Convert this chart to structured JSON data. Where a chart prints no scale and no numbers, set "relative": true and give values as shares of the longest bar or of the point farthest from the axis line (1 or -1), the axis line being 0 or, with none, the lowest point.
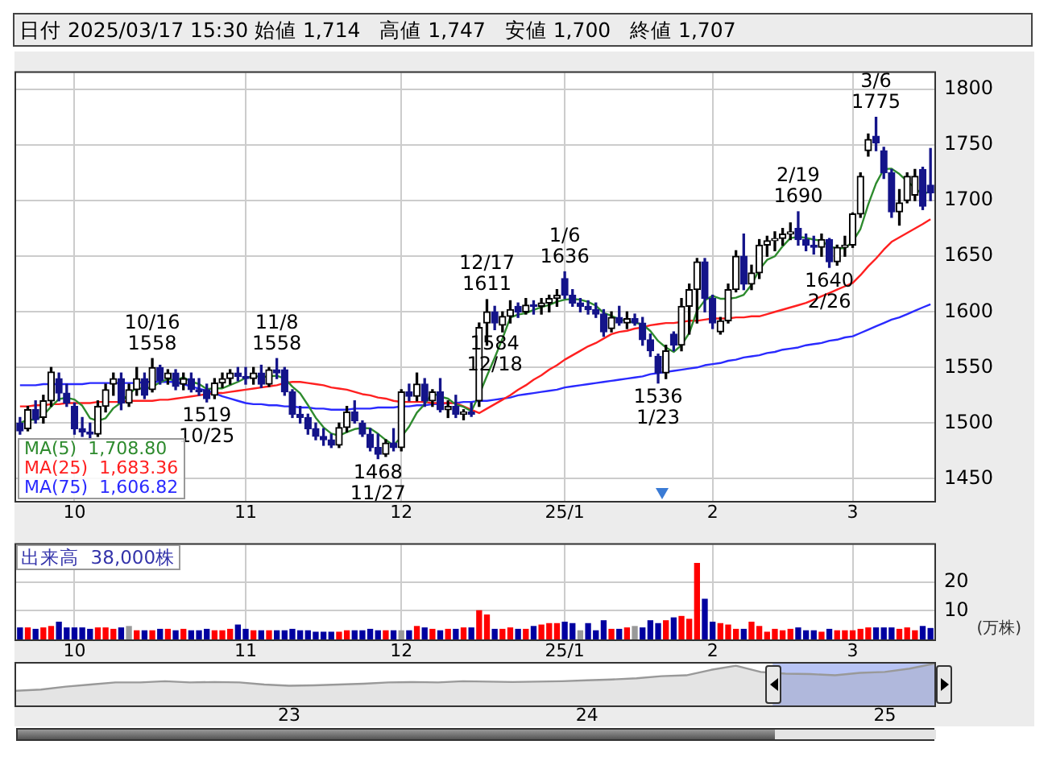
{
  "chart_data": [
    {
      "type": "candlestick",
      "title": "日付 2025/03/17 15:30 始値 1,714   高値 1,747   安値 1,700   終値 1,707",
      "categories": [
        null,
        null,
        null,
        null,
        null,
        null,
        null,
        "10",
        null,
        null,
        null,
        null,
        null,
        null,
        null,
        null,
        null,
        null,
        null,
        null,
        null,
        null,
        null,
        null,
        null,
        null,
        null,
        null,
        null,
        "11",
        null,
        null,
        null,
        null,
        null,
        null,
        null,
        null,
        null,
        null,
        null,
        null,
        null,
        null,
        null,
        null,
        null,
        null,
        null,
        "12",
        null,
        null,
        null,
        null,
        null,
        null,
        null,
        null,
        null,
        null,
        null,
        null,
        null,
        null,
        null,
        null,
        null,
        null,
        null,
        null,
        "25/1",
        null,
        null,
        null,
        null,
        null,
        null,
        null,
        null,
        null,
        null,
        null,
        null,
        null,
        null,
        null,
        null,
        null,
        null,
        "2",
        null,
        null,
        null,
        null,
        null,
        null,
        null,
        null,
        null,
        null,
        null,
        null,
        null,
        null,
        null,
        null,
        null,
        "3",
        null,
        null,
        null,
        null,
        null,
        null,
        null,
        null,
        null,
        null
      ],
      "ohlc": [
        [
          1500,
          1505,
          1490,
          1493
        ],
        [
          1495,
          1515,
          1493,
          1512
        ],
        [
          1512,
          1520,
          1500,
          1503
        ],
        [
          1505,
          1525,
          1500,
          1520
        ],
        [
          1520,
          1550,
          1515,
          1546
        ],
        [
          1540,
          1545,
          1520,
          1527
        ],
        [
          1527,
          1535,
          1515,
          1518
        ],
        [
          1515,
          1518,
          1490,
          1495
        ],
        [
          1495,
          1505,
          1488,
          1492
        ],
        [
          1492,
          1500,
          1485,
          1490
        ],
        [
          1490,
          1520,
          1488,
          1515
        ],
        [
          1515,
          1535,
          1510,
          1530
        ],
        [
          1535,
          1545,
          1525,
          1540
        ],
        [
          1540,
          1545,
          1512,
          1518
        ],
        [
          1518,
          1535,
          1515,
          1530
        ],
        [
          1530,
          1550,
          1525,
          1540
        ],
        [
          1540,
          1545,
          1522,
          1525
        ],
        [
          1530,
          1558,
          1528,
          1550
        ],
        [
          1550,
          1552,
          1535,
          1538
        ],
        [
          1540,
          1548,
          1535,
          1545
        ],
        [
          1545,
          1548,
          1530,
          1533
        ],
        [
          1535,
          1545,
          1530,
          1540
        ],
        [
          1540,
          1545,
          1528,
          1530
        ],
        [
          1530,
          1540,
          1525,
          1528
        ],
        [
          1530,
          1535,
          1519,
          1522
        ],
        [
          1525,
          1540,
          1522,
          1536
        ],
        [
          1536,
          1545,
          1532,
          1540
        ],
        [
          1540,
          1548,
          1535,
          1545
        ],
        [
          1545,
          1550,
          1538,
          1542
        ],
        [
          1542,
          1550,
          1535,
          1540
        ],
        [
          1540,
          1550,
          1535,
          1545
        ],
        [
          1545,
          1552,
          1532,
          1535
        ],
        [
          1535,
          1550,
          1533,
          1548
        ],
        [
          1548,
          1558,
          1540,
          1545
        ],
        [
          1548,
          1550,
          1525,
          1528
        ],
        [
          1528,
          1530,
          1505,
          1508
        ],
        [
          1508,
          1515,
          1500,
          1505
        ],
        [
          1505,
          1508,
          1490,
          1495
        ],
        [
          1495,
          1500,
          1485,
          1488
        ],
        [
          1488,
          1495,
          1480,
          1485
        ],
        [
          1485,
          1490,
          1478,
          1480
        ],
        [
          1480,
          1500,
          1478,
          1496
        ],
        [
          1496,
          1515,
          1492,
          1510
        ],
        [
          1510,
          1520,
          1500,
          1502
        ],
        [
          1500,
          1502,
          1488,
          1490
        ],
        [
          1490,
          1495,
          1475,
          1478
        ],
        [
          1478,
          1490,
          1468,
          1472
        ],
        [
          1472,
          1485,
          1470,
          1482
        ],
        [
          1482,
          1495,
          1475,
          1478
        ],
        [
          1478,
          1530,
          1475,
          1528
        ],
        [
          1528,
          1535,
          1520,
          1524
        ],
        [
          1524,
          1545,
          1520,
          1535
        ],
        [
          1535,
          1540,
          1515,
          1520
        ],
        [
          1520,
          1530,
          1515,
          1528
        ],
        [
          1528,
          1540,
          1510,
          1512
        ],
        [
          1512,
          1520,
          1505,
          1515
        ],
        [
          1515,
          1525,
          1505,
          1508
        ],
        [
          1508,
          1512,
          1503,
          1510
        ],
        [
          1510,
          1518,
          1506,
          1508
        ],
        [
          1520,
          1590,
          1515,
          1586
        ],
        [
          1590,
          1611,
          1570,
          1600
        ],
        [
          1600,
          1605,
          1584,
          1590
        ],
        [
          1588,
          1600,
          1582,
          1596
        ],
        [
          1596,
          1610,
          1590,
          1602
        ],
        [
          1605,
          1608,
          1595,
          1600
        ],
        [
          1600,
          1612,
          1598,
          1606
        ],
        [
          1606,
          1610,
          1598,
          1605
        ],
        [
          1605,
          1612,
          1598,
          1608
        ],
        [
          1608,
          1615,
          1600,
          1612
        ],
        [
          1612,
          1620,
          1605,
          1615
        ],
        [
          1630,
          1636,
          1612,
          1615
        ],
        [
          1615,
          1620,
          1605,
          1608
        ],
        [
          1608,
          1612,
          1600,
          1605
        ],
        [
          1605,
          1610,
          1598,
          1602
        ],
        [
          1602,
          1608,
          1595,
          1598
        ],
        [
          1598,
          1602,
          1578,
          1582
        ],
        [
          1585,
          1600,
          1582,
          1595
        ],
        [
          1595,
          1605,
          1588,
          1590
        ],
        [
          1590,
          1600,
          1585,
          1594
        ],
        [
          1594,
          1598,
          1588,
          1590
        ],
        [
          1590,
          1595,
          1570,
          1575
        ],
        [
          1575,
          1580,
          1560,
          1565
        ],
        [
          1560,
          1562,
          1536,
          1545
        ],
        [
          1545,
          1570,
          1540,
          1565
        ],
        [
          1580,
          1582,
          1565,
          1570
        ],
        [
          1570,
          1612,
          1565,
          1605
        ],
        [
          1605,
          1625,
          1580,
          1620
        ],
        [
          1620,
          1648,
          1590,
          1645
        ],
        [
          1645,
          1648,
          1600,
          1612
        ],
        [
          1612,
          1615,
          1585,
          1590
        ],
        [
          1582,
          1595,
          1580,
          1592
        ],
        [
          1592,
          1625,
          1590,
          1620
        ],
        [
          1620,
          1655,
          1618,
          1650
        ],
        [
          1650,
          1670,
          1620,
          1625
        ],
        [
          1625,
          1642,
          1620,
          1635
        ],
        [
          1635,
          1665,
          1630,
          1660
        ],
        [
          1660,
          1668,
          1650,
          1664
        ],
        [
          1664,
          1672,
          1655,
          1666
        ],
        [
          1666,
          1675,
          1660,
          1670
        ],
        [
          1670,
          1680,
          1665,
          1672
        ],
        [
          1675,
          1690,
          1660,
          1665
        ],
        [
          1665,
          1670,
          1655,
          1660
        ],
        [
          1660,
          1668,
          1652,
          1658
        ],
        [
          1658,
          1670,
          1650,
          1665
        ],
        [
          1665,
          1666,
          1640,
          1645
        ],
        [
          1645,
          1660,
          1642,
          1658
        ],
        [
          1658,
          1668,
          1650,
          1660
        ],
        [
          1660,
          1689,
          1658,
          1688
        ],
        [
          1688,
          1725,
          1685,
          1722
        ],
        [
          1745,
          1760,
          1740,
          1755
        ],
        [
          1758,
          1775,
          1745,
          1752
        ],
        [
          1745,
          1748,
          1720,
          1725
        ],
        [
          1725,
          1728,
          1685,
          1690
        ],
        [
          1690,
          1710,
          1678,
          1698
        ],
        [
          1700,
          1725,
          1698,
          1722
        ],
        [
          1705,
          1728,
          1700,
          1722
        ],
        [
          1728,
          1730,
          1692,
          1695
        ],
        [
          1714,
          1747,
          1700,
          1707
        ]
      ],
      "series": [
        {
          "type": "line",
          "name": "MA(5)  1,708.80",
          "color": "#2e8b2e",
          "values": [
            1500,
            1503,
            1503,
            1507,
            1514.8,
            1521.6,
            1522.8,
            1521.2,
            1515.6,
            1504.4,
            1502,
            1504.4,
            1513.4,
            1518.6,
            1526.6,
            1531.6,
            1530.6,
            1532.6,
            1536.6,
            1539.6,
            1538.2,
            1541.2,
            1537.2,
            1535.2,
            1530.6,
            1531.2,
            1531.2,
            1534.2,
            1537,
            1540.6,
            1542.4,
            1541.4,
            1542,
            1542.6,
            1540.2,
            1532.8,
            1526.8,
            1516.2,
            1504.8,
            1496.2,
            1490.6,
            1488.8,
            1491.8,
            1494.6,
            1495.6,
            1495.2,
            1490.4,
            1484.8,
            1480,
            1487.6,
            1496.8,
            1509.4,
            1517,
            1527,
            1523.8,
            1522,
            1516.6,
            1514.6,
            1510.6,
            1525.4,
            1542.4,
            1558.8,
            1576,
            1594.8,
            1597.6,
            1598.8,
            1601.8,
            1604.2,
            1606.2,
            1609.2,
            1611,
            1611.6,
            1611,
            1609,
            1605.6,
            1599,
            1596.4,
            1593.4,
            1591.8,
            1590.2,
            1588.8,
            1582.8,
            1573.8,
            1568,
            1564,
            1570,
            1581,
            1601,
            1610.4,
            1614.4,
            1611.8,
            1611.8,
            1612.8,
            1615.4,
            1624.4,
            1638,
            1646.8,
            1650,
            1659,
            1666.4,
            1667.4,
            1666.6,
            1665,
            1664,
            1658.6,
            1657.2,
            1657.2,
            1663.2,
            1674.6,
            1696.6,
            1715.4,
            1728.4,
            1728.8,
            1724,
            1717.4,
            1711.4,
            1705.4,
            1708.8
          ]
        },
        {
          "type": "line",
          "name": "MA(25)  1,683.36",
          "color": "#ff2020",
          "values": [
            1515,
            1515,
            1516,
            1516,
            1517,
            1517,
            1518,
            1518,
            1518,
            1518,
            1519,
            1519,
            1519,
            1519,
            1520,
            1520,
            1520,
            1520,
            1521,
            1521,
            1522,
            1523,
            1524,
            1525,
            1526,
            1527,
            1527,
            1528,
            1529,
            1530,
            1531,
            1532,
            1533,
            1534,
            1536,
            1537,
            1537,
            1536,
            1535,
            1534,
            1532,
            1531,
            1530,
            1528,
            1526,
            1525,
            1523,
            1522,
            1520,
            1519,
            1519,
            1519,
            1519,
            1518,
            1518,
            1518,
            1518,
            1515,
            1512,
            1509,
            1513,
            1517,
            1521,
            1525,
            1530,
            1534,
            1539,
            1543,
            1548,
            1552,
            1557,
            1561,
            1565,
            1569,
            1572,
            1576,
            1580,
            1582,
            1583,
            1585,
            1586,
            1588,
            1589,
            1590,
            1590,
            1591,
            1592,
            1592,
            1593,
            1594,
            1594,
            1594,
            1595,
            1595,
            1596,
            1596,
            1598,
            1600,
            1602,
            1604,
            1606,
            1608,
            1611,
            1614,
            1617,
            1620,
            1623,
            1626,
            1633,
            1641,
            1648,
            1656,
            1663,
            1667,
            1671,
            1675,
            1679,
            1683.36
          ]
        },
        {
          "type": "line",
          "name": "MA(75)  1,606.82",
          "color": "#2a2aff",
          "values": [
            1534,
            1534,
            1534,
            1535,
            1535,
            1535,
            1535,
            1535,
            1535,
            1536,
            1536,
            1536,
            1536,
            1536,
            1536,
            1536,
            1537,
            1537,
            1537,
            1537,
            1537,
            1535,
            1533,
            1531,
            1529,
            1527,
            1524,
            1522,
            1520,
            1518,
            1517,
            1517,
            1516,
            1516,
            1515,
            1515,
            1514,
            1514,
            1513,
            1513,
            1512,
            1512,
            1512,
            1513,
            1513,
            1513,
            1514,
            1514,
            1514,
            1515,
            1515,
            1516,
            1516,
            1517,
            1517,
            1518,
            1518,
            1519,
            1519,
            1520,
            1520,
            1521,
            1522,
            1523,
            1525,
            1526,
            1527,
            1528,
            1529,
            1530,
            1532,
            1533,
            1534,
            1535,
            1536,
            1537,
            1538,
            1539,
            1540,
            1541,
            1542,
            1544,
            1545,
            1546,
            1547,
            1548,
            1549,
            1550,
            1552,
            1553,
            1554,
            1556,
            1557,
            1559,
            1560,
            1561,
            1563,
            1564,
            1566,
            1567,
            1568,
            1570,
            1571,
            1572,
            1574,
            1575,
            1577,
            1578,
            1581,
            1584,
            1587,
            1590,
            1593,
            1595,
            1598,
            1601,
            1604,
            1606.82
          ]
        }
      ],
      "ylim": [
        1430,
        1815
      ],
      "yticks": [
        1450,
        1500,
        1550,
        1600,
        1650,
        1700,
        1750,
        1800
      ],
      "grid": true,
      "annotations": [
        {
          "text": "10/16\n1558",
          "y": 1558
        },
        {
          "text": "1519\n10/25",
          "y": 1519
        },
        {
          "text": "11/8\n1558",
          "y": 1558
        },
        {
          "text": "1468\n11/27",
          "y": 1468
        },
        {
          "text": "12/17\n1611",
          "y": 1611
        },
        {
          "text": "1584\n12/18",
          "y": 1584
        },
        {
          "text": "1/6\n1636",
          "y": 1636
        },
        {
          "text": "1536\n1/23",
          "y": 1536
        },
        {
          "text": "2/19\n1690",
          "y": 1690
        },
        {
          "text": "1640\n2/26",
          "y": 1640
        },
        {
          "text": "3/6\n1775",
          "y": 1775
        }
      ]
    },
    {
      "type": "bar",
      "title": "出来高  38,000株",
      "ylabel": "(万株)",
      "categories": [
        null,
        null,
        null,
        null,
        null,
        null,
        null,
        "10",
        null,
        null,
        null,
        null,
        null,
        null,
        null,
        null,
        null,
        null,
        null,
        null,
        null,
        null,
        null,
        null,
        null,
        null,
        null,
        null,
        null,
        "11",
        null,
        null,
        null,
        null,
        null,
        null,
        null,
        null,
        null,
        null,
        null,
        null,
        null,
        null,
        null,
        null,
        null,
        null,
        null,
        "12",
        null,
        null,
        null,
        null,
        null,
        null,
        null,
        null,
        null,
        null,
        null,
        null,
        null,
        null,
        null,
        null,
        null,
        null,
        null,
        null,
        "25/1",
        null,
        null,
        null,
        null,
        null,
        null,
        null,
        null,
        null,
        null,
        null,
        null,
        null,
        null,
        null,
        null,
        null,
        null,
        "2",
        null,
        null,
        null,
        null,
        null,
        null,
        null,
        null,
        null,
        null,
        null,
        null,
        null,
        null,
        null,
        null,
        null,
        "3",
        null,
        null,
        null,
        null,
        null,
        null,
        null,
        null,
        null,
        null
      ],
      "values": [
        4,
        4,
        3.5,
        4,
        4.5,
        6,
        4,
        4,
        4,
        3.5,
        4,
        4,
        3.5,
        4,
        4.5,
        3,
        3,
        3,
        3.5,
        3.5,
        3,
        3.5,
        3,
        3,
        3.5,
        3,
        3,
        3.5,
        5,
        3.5,
        3,
        3,
        3,
        3,
        3,
        3.5,
        3,
        3,
        2.5,
        2.5,
        2.5,
        2.5,
        3,
        3,
        3,
        3.5,
        3,
        3,
        3,
        3,
        3,
        4.5,
        4,
        3.5,
        3,
        3.5,
        3.5,
        4,
        4,
        10,
        8.5,
        3.5,
        3.5,
        4,
        3.5,
        3.5,
        4.5,
        5,
        5.5,
        5.5,
        6,
        5.5,
        3,
        5.5,
        3,
        6.5,
        3.5,
        3.5,
        4,
        4.5,
        4,
        6.5,
        5.5,
        6.5,
        7.5,
        8,
        7,
        26.5,
        14,
        6,
        5.5,
        5,
        3.5,
        3.5,
        6,
        4.5,
        2.5,
        3.5,
        3,
        3.5,
        4,
        3,
        3,
        2.5,
        3.5,
        3,
        3,
        3,
        3.5,
        4,
        4,
        4,
        4,
        3.5,
        4,
        3,
        4.5,
        3.8
      ],
      "colors": [
        "#0000a0",
        "#ff0000",
        "#0000a0",
        "#ff0000",
        "#ff0000",
        "#0000a0",
        "#0000a0",
        "#0000a0",
        "#0000a0",
        "#0000a0",
        "#ff0000",
        "#ff0000",
        "#ff0000",
        "#0000a0",
        "#999999",
        "#ff0000",
        "#0000a0",
        "#ff0000",
        "#0000a0",
        "#ff0000",
        "#0000a0",
        "#ff0000",
        "#0000a0",
        "#0000a0",
        "#0000a0",
        "#ff0000",
        "#ff0000",
        "#ff0000",
        "#0000a0",
        "#0000a0",
        "#ff0000",
        "#0000a0",
        "#ff0000",
        "#0000a0",
        "#0000a0",
        "#0000a0",
        "#0000a0",
        "#0000a0",
        "#0000a0",
        "#0000a0",
        "#0000a0",
        "#ff0000",
        "#ff0000",
        "#0000a0",
        "#0000a0",
        "#0000a0",
        "#0000a0",
        "#ff0000",
        "#0000a0",
        "#999999",
        "#0000a0",
        "#ff0000",
        "#0000a0",
        "#ff0000",
        "#0000a0",
        "#ff0000",
        "#0000a0",
        "#ff0000",
        "#0000a0",
        "#ff0000",
        "#ff0000",
        "#0000a0",
        "#ff0000",
        "#ff0000",
        "#0000a0",
        "#ff0000",
        "#0000a0",
        "#ff0000",
        "#ff0000",
        "#ff0000",
        "#0000a0",
        "#0000a0",
        "#999999",
        "#0000a0",
        "#0000a0",
        "#0000a0",
        "#ff0000",
        "#0000a0",
        "#ff0000",
        "#999999",
        "#0000a0",
        "#0000a0",
        "#0000a0",
        "#ff0000",
        "#0000a0",
        "#ff0000",
        "#ff0000",
        "#ff0000",
        "#0000a0",
        "#0000a0",
        "#ff0000",
        "#ff0000",
        "#ff0000",
        "#0000a0",
        "#ff0000",
        "#ff0000",
        "#ff0000",
        "#ff0000",
        "#ff0000",
        "#ff0000",
        "#0000a0",
        "#0000a0",
        "#0000a0",
        "#ff0000",
        "#0000a0",
        "#ff0000",
        "#ff0000",
        "#ff0000",
        "#ff0000",
        "#ff0000",
        "#0000a0",
        "#0000a0",
        "#0000a0",
        "#ff0000",
        "#ff0000",
        "#ff0000",
        "#0000a0",
        "#0000a0"
      ],
      "ylim": [
        0,
        33
      ],
      "yticks": [
        10,
        20
      ],
      "grid": true
    },
    {
      "type": "area",
      "relative": true,
      "color": "#999999",
      "x": [
        "2022-02",
        "2022-03",
        "2022-04",
        "2022-05",
        "2022-06",
        "2022-07",
        "2022-08",
        "2022-09",
        "2022-10",
        "2022-11",
        "2022-12",
        "2023-01",
        "2023-02",
        "2023-03",
        "2023-04",
        "2023-05",
        "2023-06",
        "2023-07",
        "2023-08",
        "2023-09",
        "2023-10",
        "2023-11",
        "2023-12",
        "2024-01",
        "2024-02",
        "2024-03",
        "2024-04",
        "2024-05",
        "2024-06",
        "2024-07",
        "2024-08",
        "2024-09",
        "2024-10",
        "2024-11",
        "2024-12",
        "2025-01",
        "2025-02",
        "2025-03"
      ],
      "values": [
        0.35,
        0.38,
        0.45,
        0.5,
        0.55,
        0.55,
        0.58,
        0.55,
        0.56,
        0.55,
        0.5,
        0.47,
        0.48,
        0.5,
        0.52,
        0.55,
        0.56,
        0.55,
        0.58,
        0.57,
        0.56,
        0.57,
        0.58,
        0.6,
        0.62,
        0.65,
        0.7,
        0.72,
        0.85,
        0.95,
        0.8,
        0.76,
        0.75,
        0.72,
        0.78,
        0.8,
        0.88,
        1
      ],
      "xlim": [
        "2022-02",
        "2025-03"
      ],
      "xticks": [
        {
          "value": "2023-01",
          "label": "23"
        },
        {
          "value": "2024-01",
          "label": "24"
        },
        {
          "value": "2025-01",
          "label": "25"
        }
      ],
      "bands": [
        {
          "axis": "x",
          "from": "2024-08-16",
          "to": "2025-03",
          "color": "#b8c4f5"
        }
      ]
    }
  ]
}
